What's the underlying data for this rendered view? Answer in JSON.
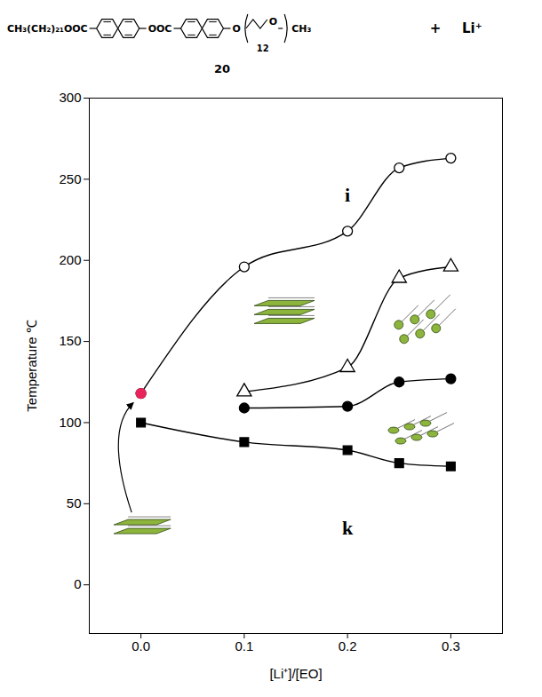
{
  "structure": {
    "left": "CH₃(CH₂)₂₁OOC",
    "middle": "OOC",
    "oxygen": "O",
    "end": "CH₃",
    "repeat": "12",
    "compound": "20",
    "plus": "+",
    "ion": "Li⁺"
  },
  "chart_data": {
    "type": "line",
    "x_label": "[Li⁺]/[EO]",
    "y_label": "Temperature ℃",
    "xlim": [
      -0.05,
      0.35
    ],
    "xticks": [
      {
        "value": 0.0,
        "label": "0.0"
      },
      {
        "value": 0.1,
        "label": "0.1"
      },
      {
        "value": 0.2,
        "label": "0.2"
      },
      {
        "value": 0.3,
        "label": "0.3"
      }
    ],
    "ylim": [
      -30,
      300
    ],
    "yticks": [
      0,
      50,
      100,
      150,
      200,
      250,
      300
    ],
    "grid": false,
    "series": [
      {
        "x": [
          0.0,
          0.1,
          0.2,
          0.25,
          0.3
        ],
        "values": [
          118,
          196,
          218,
          257,
          263
        ],
        "color": "#000000",
        "marker": "open_circle",
        "line_style": "solid"
      },
      {
        "x": [
          0.1,
          0.2,
          0.25,
          0.3
        ],
        "values": [
          119,
          134,
          189,
          196
        ],
        "color": "#000000",
        "marker": "open_triangle",
        "line_style": "solid"
      },
      {
        "x": [
          0.1,
          0.2,
          0.25,
          0.3
        ],
        "values": [
          109,
          110,
          125,
          127
        ],
        "color": "#000000",
        "marker": "circle",
        "line_style": "solid"
      },
      {
        "x": [
          0.0,
          0.1,
          0.2,
          0.25,
          0.3
        ],
        "values": [
          100,
          88,
          83,
          75,
          73
        ],
        "color": "#000000",
        "marker": "square",
        "line_style": "solid"
      },
      {
        "x": [
          0.0
        ],
        "values": [
          118
        ],
        "color": "#e8245a",
        "marker": "circle",
        "line_style": "none"
      }
    ],
    "annotations": [
      {
        "text": "i",
        "x": 0.2,
        "y": 240
      },
      {
        "text": "k",
        "x": 0.2,
        "y": 35
      }
    ]
  }
}
